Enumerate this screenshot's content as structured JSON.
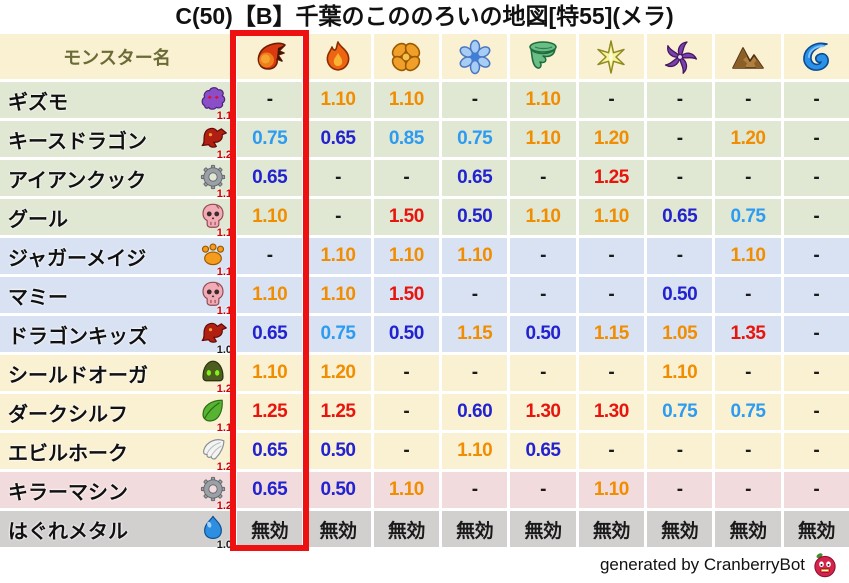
{
  "title": "C(50)【B】千葉のこののろいの地図[特55](メラ)",
  "footer": {
    "credit": "generated by CranberryBot",
    "mascot_icon": "cranberry-mascot-icon"
  },
  "colors": {
    "highlight_frame": "#ee1111",
    "multiplier_high_red": "#e8150d",
    "multiplier_up_orange": "#f18d00",
    "multiplier_down_blue": "#2222cf",
    "multiplier_slight_down_lightblue": "#2d9bf0",
    "neutral_text": "#1a1a1a",
    "header_text": "#6b6b35",
    "row_green": "#e0e7d3",
    "row_blue": "#d9e2f3",
    "row_cream": "#faf0d2",
    "row_pink": "#f2dbdc",
    "row_gray": "#d2cfcf",
    "header_bg": "#faf0d2",
    "badge_red": "#cf0000",
    "badge_black": "#1a1a1a"
  },
  "chart_data": {
    "type": "table",
    "title": "C(50)【B】千葉のこののろいの地図[特55](メラ)",
    "name_column_header": "モンスター名",
    "element_column_icons": [
      "mera-fireball-icon",
      "gira-flame-icon",
      "io-explosion-icon",
      "hyado-ice-icon",
      "bagi-wind-icon",
      "dein-lightning-icon",
      "dolma-dark-icon",
      "earth-mountain-icon",
      "water-wave-icon"
    ],
    "highlighted_column_index": 0,
    "immune_label": "無効",
    "rows": [
      {
        "name": "ギズモ",
        "family_icon": "purple-ghost-icon",
        "level_badge": "1.1",
        "row_color": "green",
        "values": [
          "-",
          "1.10",
          "1.10",
          "-",
          "1.10",
          "-",
          "-",
          "-",
          "-"
        ]
      },
      {
        "name": "キースドラゴン",
        "family_icon": "red-dragon-icon",
        "level_badge": "1.2",
        "row_color": "green",
        "values": [
          "0.75",
          "0.65",
          "0.85",
          "0.75",
          "1.10",
          "1.20",
          "-",
          "1.20",
          "-"
        ]
      },
      {
        "name": "アイアンクック",
        "family_icon": "gear-icon",
        "level_badge": "1.1",
        "row_color": "green",
        "values": [
          "0.65",
          "-",
          "-",
          "0.65",
          "-",
          "1.25",
          "-",
          "-",
          "-"
        ]
      },
      {
        "name": "グール",
        "family_icon": "skull-icon",
        "level_badge": "1.1",
        "row_color": "green",
        "values": [
          "1.10",
          "-",
          "1.50",
          "0.50",
          "1.10",
          "1.10",
          "0.65",
          "0.75",
          "-"
        ]
      },
      {
        "name": "ジャガーメイジ",
        "family_icon": "paw-icon",
        "level_badge": "1.1",
        "row_color": "blue",
        "values": [
          "-",
          "1.10",
          "1.10",
          "1.10",
          "-",
          "-",
          "-",
          "1.10",
          "-"
        ]
      },
      {
        "name": "マミー",
        "family_icon": "skull-icon",
        "level_badge": "1.1",
        "row_color": "blue",
        "values": [
          "1.10",
          "1.10",
          "1.50",
          "-",
          "-",
          "-",
          "0.50",
          "-",
          "-"
        ]
      },
      {
        "name": "ドラゴンキッズ",
        "family_icon": "red-dragon-icon",
        "level_badge": "1.0",
        "row_color": "blue",
        "values": [
          "0.65",
          "0.75",
          "0.50",
          "1.15",
          "0.50",
          "1.15",
          "1.05",
          "1.35",
          "-"
        ]
      },
      {
        "name": "シールドオーガ",
        "family_icon": "helmet-icon",
        "level_badge": "1.2",
        "row_color": "cream",
        "values": [
          "1.10",
          "1.20",
          "-",
          "-",
          "-",
          "-",
          "1.10",
          "-",
          "-"
        ]
      },
      {
        "name": "ダークシルフ",
        "family_icon": "leaf-icon",
        "level_badge": "1.1",
        "row_color": "cream",
        "values": [
          "1.25",
          "1.25",
          "-",
          "0.60",
          "1.30",
          "1.30",
          "0.75",
          "0.75",
          "-"
        ]
      },
      {
        "name": "エビルホーク",
        "family_icon": "wing-icon",
        "level_badge": "1.2",
        "row_color": "cream",
        "values": [
          "0.65",
          "0.50",
          "-",
          "1.10",
          "0.65",
          "-",
          "-",
          "-",
          "-"
        ]
      },
      {
        "name": "キラーマシン",
        "family_icon": "gear-icon",
        "level_badge": "1.2",
        "row_color": "pink",
        "values": [
          "0.65",
          "0.50",
          "1.10",
          "-",
          "-",
          "1.10",
          "-",
          "-",
          "-"
        ]
      },
      {
        "name": "はぐれメタル",
        "family_icon": "slime-icon",
        "level_badge": "1.0",
        "row_color": "gray",
        "values": [
          "無効",
          "無効",
          "無効",
          "無効",
          "無効",
          "無効",
          "無効",
          "無効",
          "無効"
        ]
      }
    ]
  }
}
